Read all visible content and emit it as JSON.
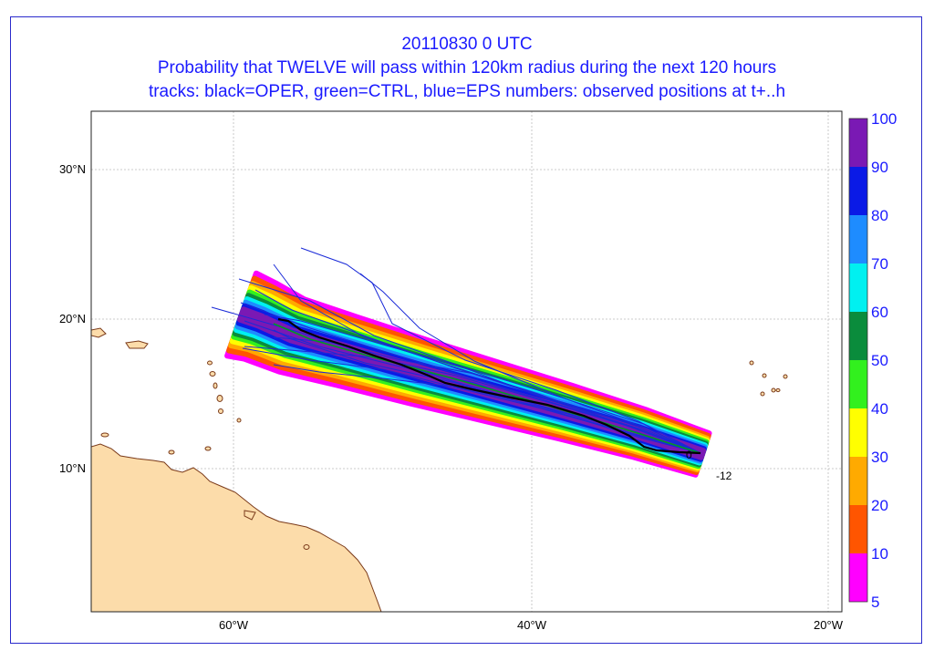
{
  "title": {
    "date": "20110830 0 UTC",
    "probability": "Probability that TWELVE will pass within 120km radius during the next 120 hours",
    "tracks": "tracks: black=OPER, green=CTRL, blue=EPS numbers: observed positions at t+..h"
  },
  "map": {
    "lat_labels": [
      "30°N",
      "20°N",
      "10°N"
    ],
    "lon_labels": [
      "60°W",
      "40°W",
      "20°W"
    ],
    "observed_positions": [
      "0",
      "-12"
    ],
    "land_color": "#fcdcaa",
    "coast_color": "#7a3a1a",
    "grid_color": "#bbbbbb"
  },
  "legend": {
    "labels": [
      "100",
      "90",
      "80",
      "70",
      "60",
      "50",
      "40",
      "30",
      "20",
      "10",
      "5"
    ],
    "bands": [
      {
        "range": "90-100",
        "color": "#7a19b4"
      },
      {
        "range": "80-90",
        "color": "#0a1ae6"
      },
      {
        "range": "70-80",
        "color": "#1e8cff"
      },
      {
        "range": "60-70",
        "color": "#00f0f0"
      },
      {
        "range": "50-60",
        "color": "#0a8c3c"
      },
      {
        "range": "40-50",
        "color": "#32f01e"
      },
      {
        "range": "30-40",
        "color": "#ffff00"
      },
      {
        "range": "20-30",
        "color": "#ffaa00"
      },
      {
        "range": "10-20",
        "color": "#ff5500"
      },
      {
        "range": "5-10",
        "color": "#ff00ff"
      }
    ]
  }
}
